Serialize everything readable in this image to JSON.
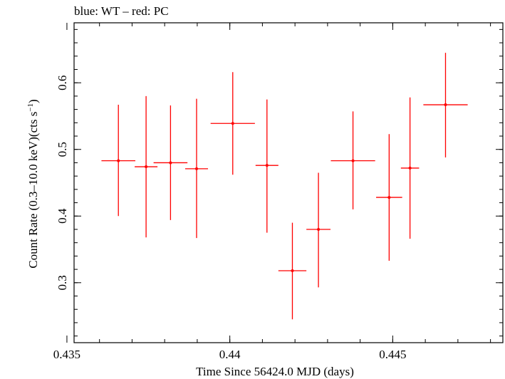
{
  "chart_data": {
    "type": "scatter",
    "title": "blue: WT – red: PC",
    "xlabel": "Time Since 56424.0 MJD (days)",
    "ylabel_main": "Count Rate (0.3–10.0 keV)(cts s",
    "ylabel_sup": "−1",
    "ylabel_end": ")",
    "xlim": [
      0.43522,
      0.44838
    ],
    "ylim": [
      0.21,
      0.69
    ],
    "x_ticks": [
      {
        "value": 0.435,
        "label": "0.435"
      },
      {
        "value": 0.44,
        "label": "0.44"
      },
      {
        "value": 0.445,
        "label": "0.445"
      }
    ],
    "y_ticks": [
      {
        "value": 0.3,
        "label": "0.3"
      },
      {
        "value": 0.4,
        "label": "0.4"
      },
      {
        "value": 0.5,
        "label": "0.5"
      },
      {
        "value": 0.6,
        "label": "0.6"
      }
    ],
    "x_minor_step": 0.001,
    "y_minor_step": 0.02,
    "series": [
      {
        "color": "#ff0000",
        "points": [
          {
            "x": 0.43658,
            "y": 0.483,
            "xerr": 0.00052,
            "ylo": 0.4,
            "yhi": 0.567
          },
          {
            "x": 0.43743,
            "y": 0.474,
            "xerr": 0.00035,
            "ylo": 0.368,
            "yhi": 0.58
          },
          {
            "x": 0.43818,
            "y": 0.48,
            "xerr": 0.00052,
            "ylo": 0.394,
            "yhi": 0.566
          },
          {
            "x": 0.43898,
            "y": 0.471,
            "xerr": 0.00035,
            "ylo": 0.367,
            "yhi": 0.576
          },
          {
            "x": 0.44009,
            "y": 0.539,
            "xerr": 0.00068,
            "ylo": 0.462,
            "yhi": 0.616
          },
          {
            "x": 0.44114,
            "y": 0.476,
            "xerr": 0.00035,
            "ylo": 0.375,
            "yhi": 0.575
          },
          {
            "x": 0.44192,
            "y": 0.318,
            "xerr": 0.00043,
            "ylo": 0.245,
            "yhi": 0.39
          },
          {
            "x": 0.44272,
            "y": 0.38,
            "xerr": 0.00037,
            "ylo": 0.293,
            "yhi": 0.465
          },
          {
            "x": 0.44378,
            "y": 0.483,
            "xerr": 0.00068,
            "ylo": 0.41,
            "yhi": 0.557
          },
          {
            "x": 0.44489,
            "y": 0.428,
            "xerr": 0.0004,
            "ylo": 0.333,
            "yhi": 0.523
          },
          {
            "x": 0.44553,
            "y": 0.472,
            "xerr": 0.00028,
            "ylo": 0.366,
            "yhi": 0.578
          },
          {
            "x": 0.44662,
            "y": 0.567,
            "xerr": 0.00068,
            "ylo": 0.488,
            "yhi": 0.645
          }
        ]
      }
    ]
  }
}
